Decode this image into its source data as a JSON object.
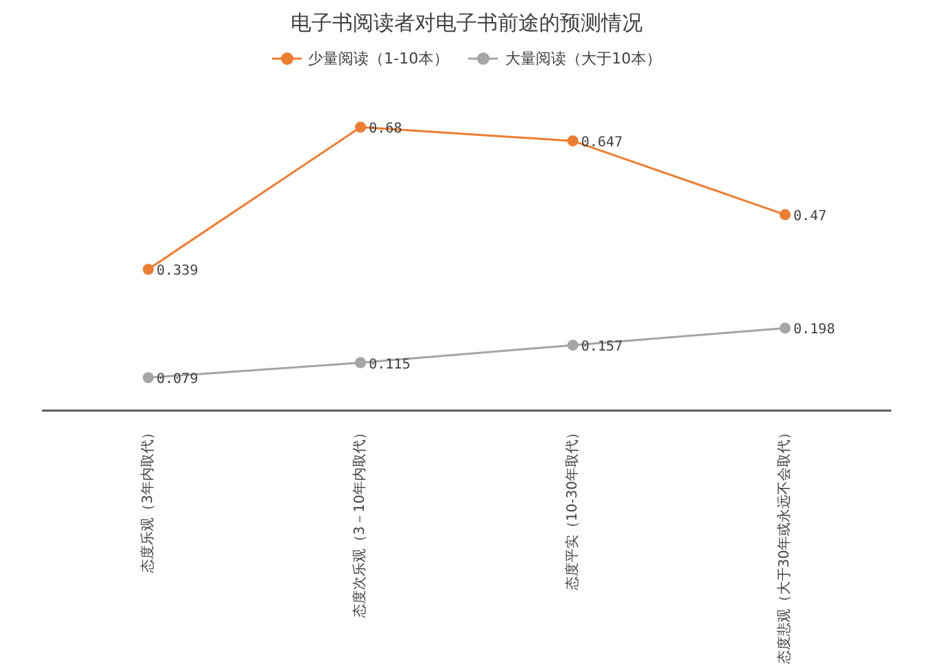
{
  "chart_data": {
    "type": "line",
    "title": "电子书阅读者对电子书前途的预测情况",
    "categories": [
      "态度乐观（3年内取代）",
      "态度次乐观（3－10年内取代）",
      "态度平实（10-30年取代）",
      "态度悲观（大于30年或永远不会取代）"
    ],
    "series": [
      {
        "name": "少量阅读（1-10本）",
        "color": "#ed7d31",
        "values": [
          0.339,
          0.68,
          0.647,
          0.47
        ]
      },
      {
        "name": "大量阅读（大于10本）",
        "color": "#a5a5a5",
        "values": [
          0.079,
          0.115,
          0.157,
          0.198
        ]
      }
    ],
    "data_labels": true,
    "legend": "top",
    "marker": "circle",
    "grid": false
  }
}
